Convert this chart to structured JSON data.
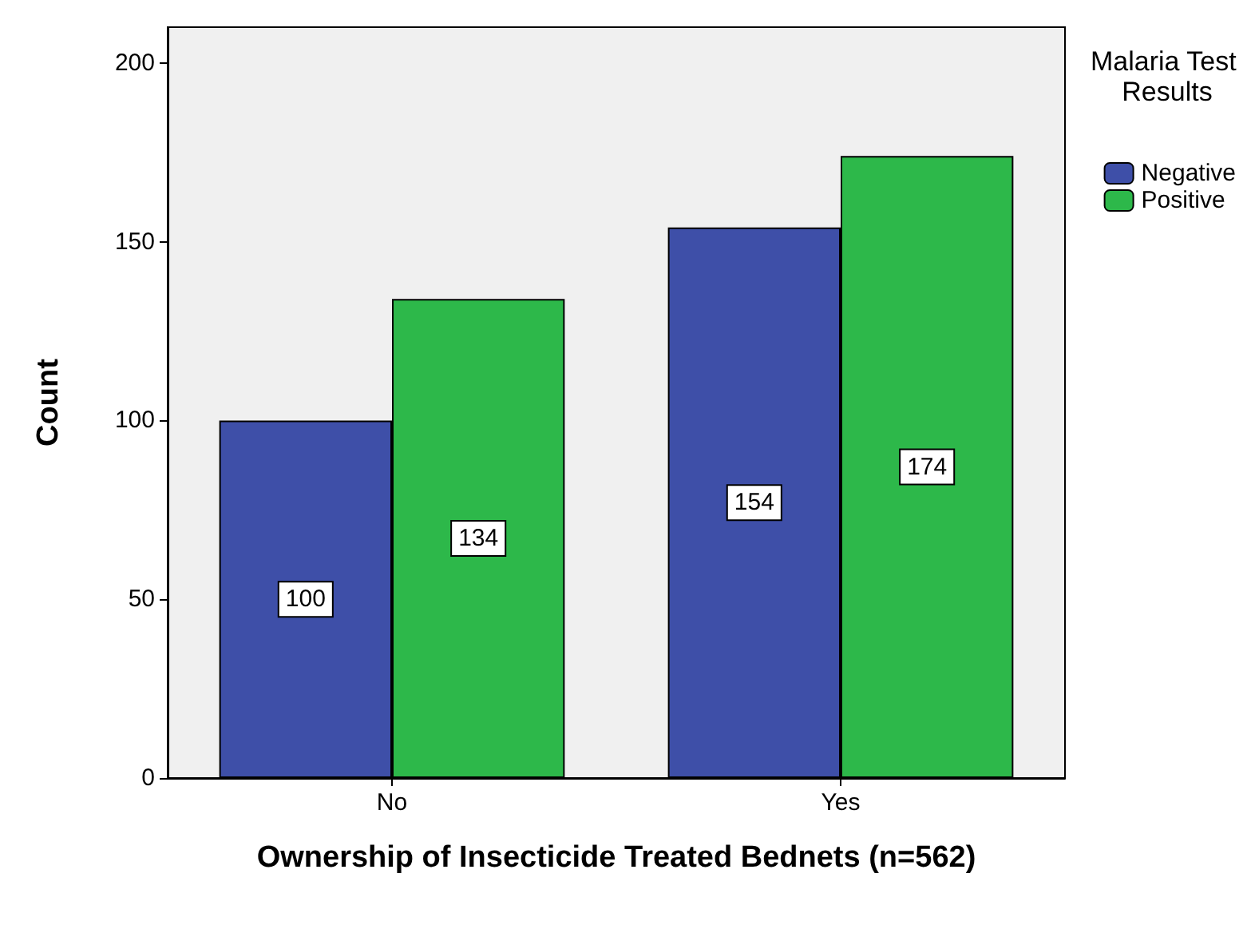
{
  "chart_data": {
    "type": "bar",
    "xlabel": "Ownership of Insecticide Treated Bednets (n=562)",
    "ylabel": "Count",
    "legend_title": "Malaria Test Results",
    "categories": [
      "No",
      "Yes"
    ],
    "series": [
      {
        "name": "Negative",
        "color": "#3e4fa8",
        "values": [
          100,
          154
        ]
      },
      {
        "name": "Positive",
        "color": "#2db84a",
        "values": [
          134,
          174
        ]
      }
    ],
    "ylim": [
      0,
      210
    ],
    "yticks": [
      0,
      50,
      100,
      150,
      200
    ],
    "data_labels": true,
    "legend": "top right",
    "grid": false
  }
}
